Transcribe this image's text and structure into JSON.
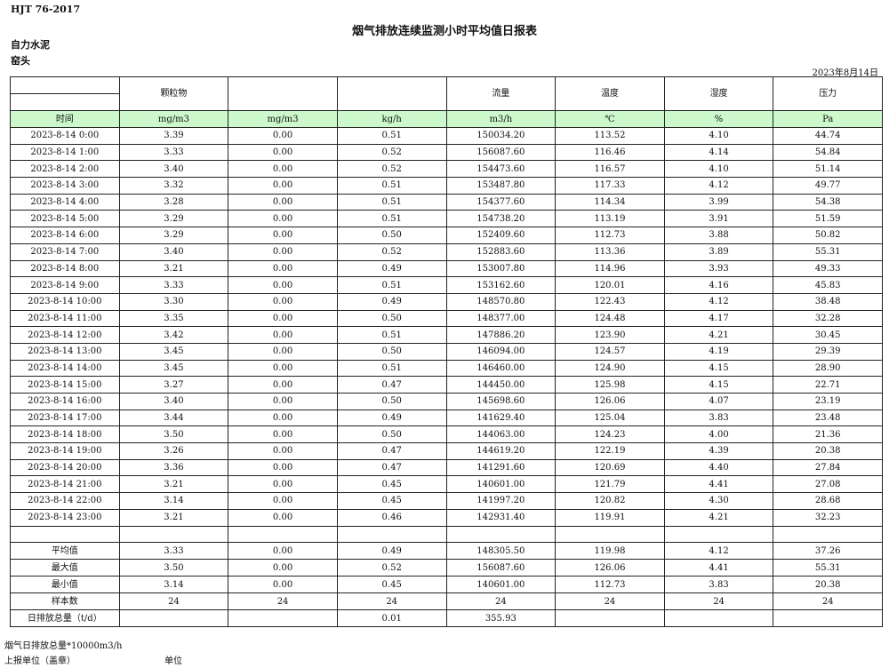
{
  "header": {
    "standard": "HJT  76-2017",
    "title": "烟气排放连续监测小时平均值日报表",
    "organization": "自力水泥",
    "site": "窑头",
    "date": "2023年8月14日"
  },
  "columns": [
    {
      "name": "",
      "unit": "时间"
    },
    {
      "name": "颗粒物",
      "unit": "mg/m3"
    },
    {
      "name": "",
      "unit": "mg/m3"
    },
    {
      "name": "",
      "unit": "kg/h"
    },
    {
      "name": "流量",
      "unit": "m3/h"
    },
    {
      "name": "温度",
      "unit": "℃"
    },
    {
      "name": "湿度",
      "unit": "%"
    },
    {
      "name": "压力",
      "unit": "Pa"
    }
  ],
  "rows": [
    [
      "2023-8-14 0:00",
      "3.39",
      "0.00",
      "0.51",
      "150034.20",
      "113.52",
      "4.10",
      "44.74"
    ],
    [
      "2023-8-14 1:00",
      "3.33",
      "0.00",
      "0.52",
      "156087.60",
      "116.46",
      "4.14",
      "54.84"
    ],
    [
      "2023-8-14 2:00",
      "3.40",
      "0.00",
      "0.52",
      "154473.60",
      "116.57",
      "4.10",
      "51.14"
    ],
    [
      "2023-8-14 3:00",
      "3.32",
      "0.00",
      "0.51",
      "153487.80",
      "117.33",
      "4.12",
      "49.77"
    ],
    [
      "2023-8-14 4:00",
      "3.28",
      "0.00",
      "0.51",
      "154377.60",
      "114.34",
      "3.99",
      "54.38"
    ],
    [
      "2023-8-14 5:00",
      "3.29",
      "0.00",
      "0.51",
      "154738.20",
      "113.19",
      "3.91",
      "51.59"
    ],
    [
      "2023-8-14 6:00",
      "3.29",
      "0.00",
      "0.50",
      "152409.60",
      "112.73",
      "3.88",
      "50.82"
    ],
    [
      "2023-8-14 7:00",
      "3.40",
      "0.00",
      "0.52",
      "152883.60",
      "113.36",
      "3.89",
      "55.31"
    ],
    [
      "2023-8-14 8:00",
      "3.21",
      "0.00",
      "0.49",
      "153007.80",
      "114.96",
      "3.93",
      "49.33"
    ],
    [
      "2023-8-14 9:00",
      "3.33",
      "0.00",
      "0.51",
      "153162.60",
      "120.01",
      "4.16",
      "45.83"
    ],
    [
      "2023-8-14 10:00",
      "3.30",
      "0.00",
      "0.49",
      "148570.80",
      "122.43",
      "4.12",
      "38.48"
    ],
    [
      "2023-8-14 11:00",
      "3.35",
      "0.00",
      "0.50",
      "148377.00",
      "124.48",
      "4.17",
      "32.28"
    ],
    [
      "2023-8-14 12:00",
      "3.42",
      "0.00",
      "0.51",
      "147886.20",
      "123.90",
      "4.21",
      "30.45"
    ],
    [
      "2023-8-14 13:00",
      "3.45",
      "0.00",
      "0.50",
      "146094.00",
      "124.57",
      "4.19",
      "29.39"
    ],
    [
      "2023-8-14 14:00",
      "3.45",
      "0.00",
      "0.51",
      "146460.00",
      "124.90",
      "4.15",
      "28.90"
    ],
    [
      "2023-8-14 15:00",
      "3.27",
      "0.00",
      "0.47",
      "144450.00",
      "125.98",
      "4.15",
      "22.71"
    ],
    [
      "2023-8-14 16:00",
      "3.40",
      "0.00",
      "0.50",
      "145698.60",
      "126.06",
      "4.07",
      "23.19"
    ],
    [
      "2023-8-14 17:00",
      "3.44",
      "0.00",
      "0.49",
      "141629.40",
      "125.04",
      "3.83",
      "23.48"
    ],
    [
      "2023-8-14 18:00",
      "3.50",
      "0.00",
      "0.50",
      "144063.00",
      "124.23",
      "4.00",
      "21.36"
    ],
    [
      "2023-8-14 19:00",
      "3.26",
      "0.00",
      "0.47",
      "144619.20",
      "122.19",
      "4.39",
      "20.38"
    ],
    [
      "2023-8-14 20:00",
      "3.36",
      "0.00",
      "0.47",
      "141291.60",
      "120.69",
      "4.40",
      "27.84"
    ],
    [
      "2023-8-14 21:00",
      "3.21",
      "0.00",
      "0.45",
      "140601.00",
      "121.79",
      "4.41",
      "27.08"
    ],
    [
      "2023-8-14 22:00",
      "3.14",
      "0.00",
      "0.45",
      "141997.20",
      "120.82",
      "4.30",
      "28.68"
    ],
    [
      "2023-8-14 23:00",
      "3.21",
      "0.00",
      "0.46",
      "142931.40",
      "119.91",
      "4.21",
      "32.23"
    ]
  ],
  "summary": [
    [
      "平均值",
      "3.33",
      "0.00",
      "0.49",
      "148305.50",
      "119.98",
      "4.12",
      "37.26"
    ],
    [
      "最大值",
      "3.50",
      "0.00",
      "0.52",
      "156087.60",
      "126.06",
      "4.41",
      "55.31"
    ],
    [
      "最小值",
      "3.14",
      "0.00",
      "0.45",
      "140601.00",
      "112.73",
      "3.83",
      "20.38"
    ],
    [
      "样本数",
      "24",
      "24",
      "24",
      "24",
      "24",
      "24",
      "24"
    ],
    [
      "日排放总量（t/d）",
      "",
      "",
      "0.01",
      "355.93",
      "",
      "",
      ""
    ]
  ],
  "footer": {
    "note": "烟气日排放总量*10000m3/h",
    "reporter": "上报单位（盖章）",
    "unit": "单位"
  },
  "colors": {
    "unit_row_bg": "#ccf8cc"
  }
}
